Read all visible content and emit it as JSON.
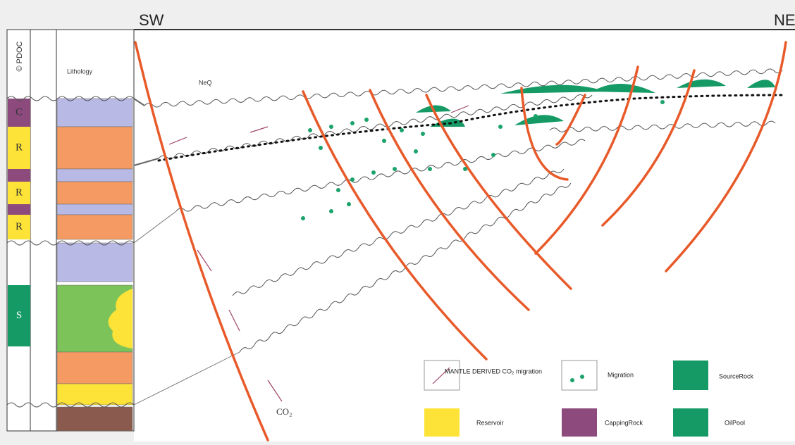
{
  "header": {
    "left": "SW",
    "right": "NE"
  },
  "copyright": "© PDOC",
  "column": {
    "title": "Lithology",
    "letters": [
      "C",
      "R",
      "R",
      "R",
      "S"
    ]
  },
  "section": {
    "label": "NeQ",
    "gas": "CO₂"
  },
  "legend": [
    {
      "label": "MANTLE DERIVED CO₂ migration"
    },
    {
      "label": "Migration"
    },
    {
      "label": "SourceRock"
    },
    {
      "label": "Reservoir"
    },
    {
      "label": "CappingRock"
    },
    {
      "label": "OilPool"
    }
  ]
}
